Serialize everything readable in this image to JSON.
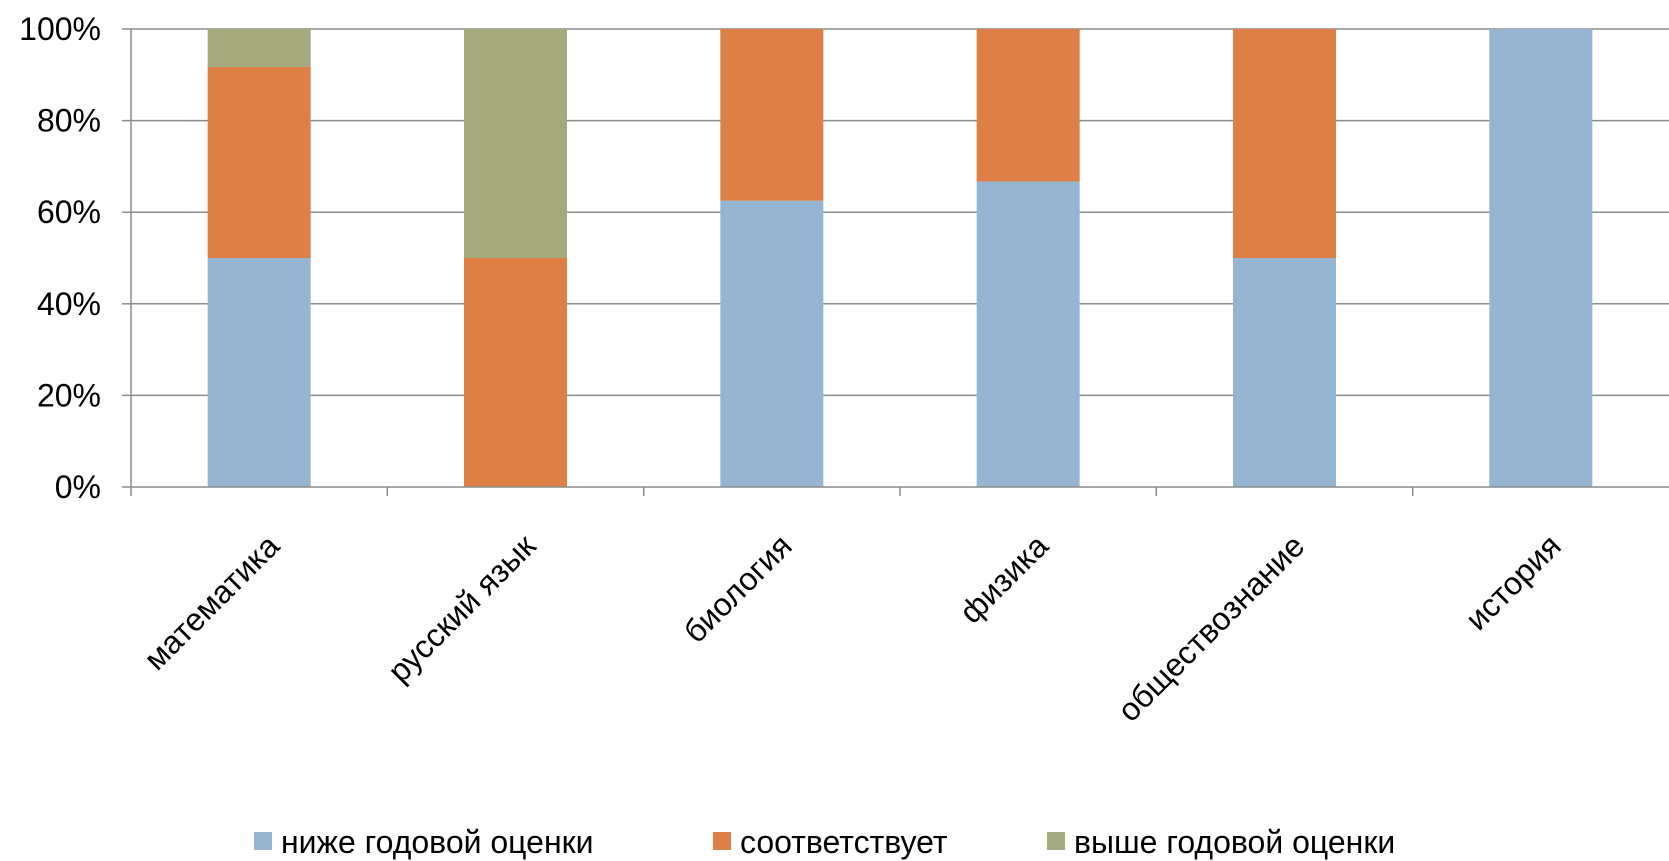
{
  "chart_data": {
    "type": "bar",
    "stacked": true,
    "categories": [
      "математика",
      "русский язык",
      "биология",
      "физика",
      "обществознание",
      "история"
    ],
    "series": [
      {
        "name": "ниже годовой оценки",
        "color": "#95B5D3",
        "values": [
          50,
          0,
          62.5,
          66.7,
          50,
          100
        ]
      },
      {
        "name": "соответствует",
        "color": "#DE8045",
        "values": [
          41.7,
          50,
          37.5,
          33.3,
          50,
          0
        ]
      },
      {
        "name": "выше годовой оценки",
        "color": "#A4AA7E",
        "values": [
          8.3,
          50,
          0,
          0,
          0,
          0
        ]
      }
    ],
    "y_ticks": [
      "0%",
      "20%",
      "40%",
      "60%",
      "80%",
      "100%"
    ],
    "ylim": [
      0,
      100
    ],
    "grid": true,
    "legend_position": "bottom"
  }
}
